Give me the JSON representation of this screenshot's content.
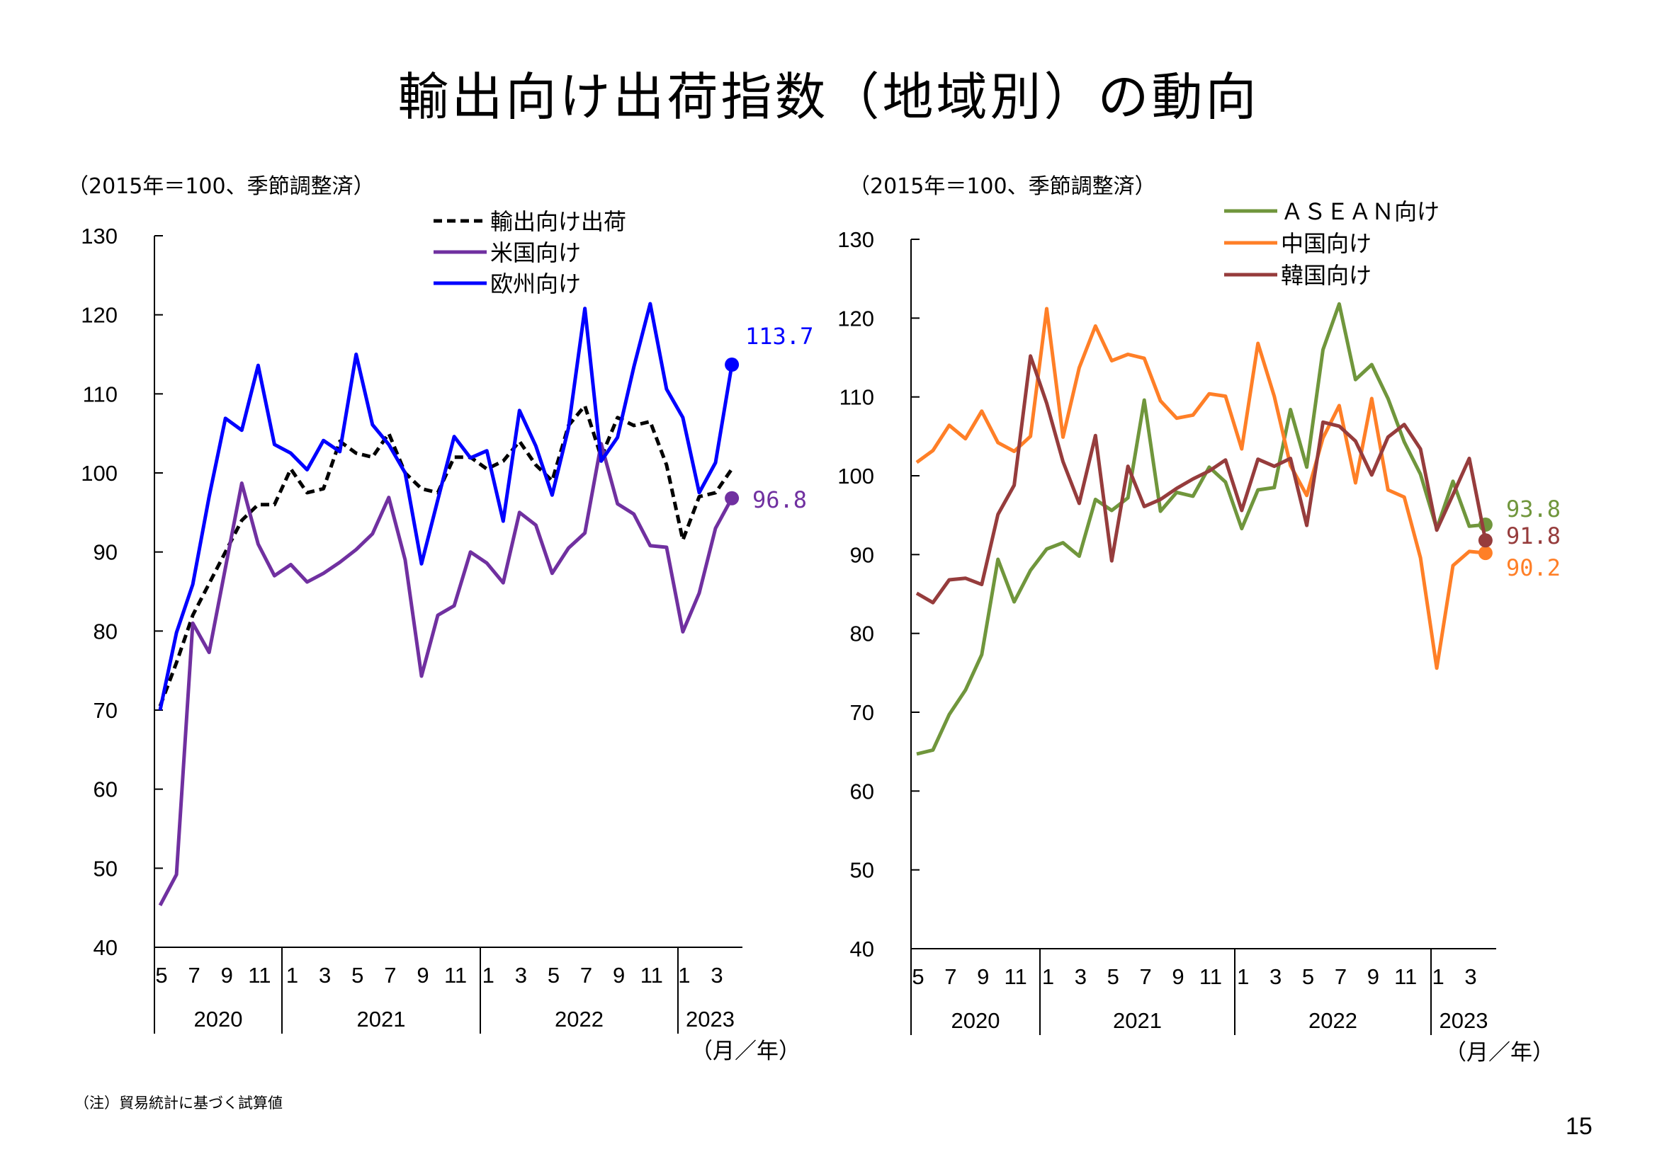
{
  "title": "輸出向け出荷指数（地域別）の動向",
  "footnote": "（注）貿易統計に基づく試算値",
  "page_number": "15",
  "chart_data": [
    {
      "type": "line",
      "unit_note": "（2015年＝100、季節調整済）",
      "ylim": [
        40,
        130
      ],
      "y_ticks": [
        "40",
        "50",
        "60",
        "70",
        "80",
        "90",
        "100",
        "110",
        "120",
        "130"
      ],
      "month_ticks": [
        "5",
        "7",
        "9",
        "11",
        "1",
        "3",
        "5",
        "7",
        "9",
        "11",
        "1",
        "3",
        "5",
        "7",
        "9",
        "11",
        "1",
        "3"
      ],
      "years": [
        "2020",
        "2021",
        "2022",
        "2023"
      ],
      "axis_unit": "（月／年）",
      "x": [
        "2020-05",
        "2020-06",
        "2020-07",
        "2020-08",
        "2020-09",
        "2020-10",
        "2020-11",
        "2020-12",
        "2021-01",
        "2021-02",
        "2021-03",
        "2021-04",
        "2021-05",
        "2021-06",
        "2021-07",
        "2021-08",
        "2021-09",
        "2021-10",
        "2021-11",
        "2021-12",
        "2022-01",
        "2022-02",
        "2022-03",
        "2022-04",
        "2022-05",
        "2022-06",
        "2022-07",
        "2022-08",
        "2022-09",
        "2022-10",
        "2022-11",
        "2022-12",
        "2023-01",
        "2023-02",
        "2023-03",
        "2023-04"
      ],
      "series": [
        {
          "name": "輸出向け出荷",
          "color": "#000000",
          "dash": true,
          "end_label": "",
          "values": [
            70.5,
            76,
            82,
            86,
            90,
            94,
            96,
            96,
            100.5,
            97.5,
            98,
            104,
            102.5,
            102,
            105,
            100,
            98,
            97.5,
            102,
            102,
            100.5,
            101.5,
            104,
            101,
            99,
            106,
            108.5,
            102,
            107,
            106,
            106.5,
            101,
            91.5,
            97,
            97.5,
            100.5
          ]
        },
        {
          "name": "米国向け",
          "color": "#7030a0",
          "dash": false,
          "end_label": "96.8",
          "values": [
            45.3,
            49.2,
            81,
            77.3,
            88,
            98.7,
            91,
            87,
            88.4,
            86.2,
            87.3,
            88.7,
            90.3,
            92.3,
            96.9,
            89,
            74.3,
            82,
            83.2,
            90,
            88.6,
            86.1,
            95,
            93.4,
            87.3,
            90.5,
            92.4,
            103.7,
            96.1,
            94.8,
            90.8,
            90.6,
            79.9,
            84.8,
            93,
            96.8
          ]
        },
        {
          "name": "欧州向け",
          "color": "#0000ff",
          "dash": false,
          "end_label": "113.7",
          "values": [
            70,
            79.8,
            85.9,
            97,
            106.9,
            105.4,
            113.6,
            103.6,
            102.5,
            100.4,
            104.1,
            102.7,
            115,
            106.1,
            103.6,
            100,
            88.5,
            96.6,
            104.6,
            101.9,
            102.8,
            93.9,
            107.9,
            103.4,
            97.2,
            105.7,
            120.8,
            101.5,
            104.5,
            113.4,
            121.4,
            110.6,
            107,
            97.5,
            101.3,
            113.7
          ]
        }
      ]
    },
    {
      "type": "line",
      "unit_note": "（2015年＝100、季節調整済）",
      "ylim": [
        40,
        130
      ],
      "y_ticks": [
        "40",
        "50",
        "60",
        "70",
        "80",
        "90",
        "100",
        "110",
        "120",
        "130"
      ],
      "month_ticks": [
        "5",
        "7",
        "9",
        "11",
        "1",
        "3",
        "5",
        "7",
        "9",
        "11",
        "1",
        "3",
        "5",
        "7",
        "9",
        "11",
        "1",
        "3"
      ],
      "years": [
        "2020",
        "2021",
        "2022",
        "2023"
      ],
      "axis_unit": "（月／年）",
      "x": [
        "2020-05",
        "2020-06",
        "2020-07",
        "2020-08",
        "2020-09",
        "2020-10",
        "2020-11",
        "2020-12",
        "2021-01",
        "2021-02",
        "2021-03",
        "2021-04",
        "2021-05",
        "2021-06",
        "2021-07",
        "2021-08",
        "2021-09",
        "2021-10",
        "2021-11",
        "2021-12",
        "2022-01",
        "2022-02",
        "2022-03",
        "2022-04",
        "2022-05",
        "2022-06",
        "2022-07",
        "2022-08",
        "2022-09",
        "2022-10",
        "2022-11",
        "2022-12",
        "2023-01",
        "2023-02",
        "2023-03",
        "2023-04"
      ],
      "series": [
        {
          "name": "ＡＳＥＡＮ向け",
          "color": "#70963c",
          "dash": false,
          "end_label": "93.8",
          "values": [
            64.7,
            65.2,
            69.7,
            72.8,
            77.3,
            89.4,
            84,
            88,
            90.7,
            91.5,
            89.8,
            97,
            95.6,
            97.2,
            109.6,
            95.5,
            97.9,
            97.4,
            101.1,
            99.2,
            93.3,
            98.2,
            98.5,
            108.4,
            101.1,
            116,
            121.8,
            112.2,
            114.1,
            109.8,
            104.3,
            100.2,
            93.3,
            99.3,
            93.6,
            93.8
          ]
        },
        {
          "name": "中国向け",
          "color": "#ff7f27",
          "dash": false,
          "end_label": "90.2",
          "values": [
            101.7,
            103.2,
            106.4,
            104.7,
            108.2,
            104.2,
            103.1,
            105,
            121.2,
            104.9,
            113.7,
            119,
            114.6,
            115.4,
            114.9,
            109.5,
            107.3,
            107.7,
            110.4,
            110.1,
            103.4,
            116.8,
            110.1,
            101.3,
            97.5,
            104.8,
            108.9,
            99.1,
            109.8,
            98.2,
            97.3,
            89.6,
            75.6,
            88.6,
            90.4,
            90.2
          ]
        },
        {
          "name": "韓国向け",
          "color": "#963c3c",
          "dash": false,
          "end_label": "91.8",
          "values": [
            85.1,
            83.9,
            86.8,
            87,
            86.2,
            95.1,
            98.8,
            115.2,
            109.2,
            101.8,
            96.5,
            105.1,
            89.2,
            101.2,
            96.1,
            97,
            98.4,
            99.6,
            100.6,
            102,
            95.6,
            102.1,
            101.2,
            102.2,
            93.7,
            106.8,
            106.3,
            104.4,
            100.1,
            104.9,
            106.5,
            103.4,
            93.1,
            97.6,
            102.2,
            91.8
          ]
        }
      ]
    }
  ]
}
